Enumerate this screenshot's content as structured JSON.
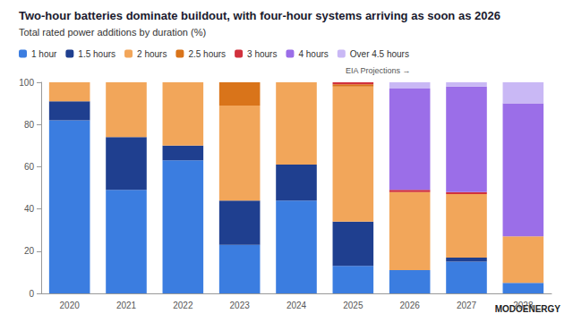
{
  "chart_data": {
    "type": "bar",
    "title": "Two-hour batteries dominate buildout, with four-hour systems arriving as soon as 2026",
    "subtitle": "Total rated power additions by duration (%)",
    "categories": [
      "2020",
      "2021",
      "2022",
      "2023",
      "2024",
      "2025",
      "2026",
      "2027",
      "2028"
    ],
    "series": [
      {
        "name": "1 hour",
        "color": "#3b7de0",
        "values": [
          82,
          49,
          63,
          23,
          44,
          13,
          11,
          15,
          5
        ]
      },
      {
        "name": "1.5 hours",
        "color": "#1f3f8f",
        "values": [
          9,
          25,
          7,
          21,
          17,
          21,
          0,
          2,
          0
        ]
      },
      {
        "name": "2 hours",
        "color": "#f2a65a",
        "values": [
          9,
          26,
          30,
          45,
          39,
          64,
          37,
          30,
          22
        ]
      },
      {
        "name": "2.5 hours",
        "color": "#d9741a",
        "values": [
          0,
          0,
          0,
          11,
          0,
          1,
          0,
          0,
          0
        ]
      },
      {
        "name": "3 hours",
        "color": "#d1313d",
        "values": [
          0,
          0,
          0,
          0,
          0,
          1,
          1,
          1,
          0
        ]
      },
      {
        "name": "4 hours",
        "color": "#9b6ee8",
        "values": [
          0,
          0,
          0,
          0,
          0,
          0,
          48,
          50,
          63
        ]
      },
      {
        "name": "Over 4.5 hours",
        "color": "#c9b8f5",
        "values": [
          0,
          0,
          0,
          0,
          0,
          0,
          3,
          2,
          10
        ]
      }
    ],
    "ylim": [
      0,
      100
    ],
    "yticks": [
      0,
      20,
      40,
      60,
      80,
      100
    ],
    "stacked": true,
    "grid": false,
    "legend": "top",
    "data_labels": false,
    "annotations": [
      "EIA Projections →",
      "MODOENERGY"
    ]
  }
}
